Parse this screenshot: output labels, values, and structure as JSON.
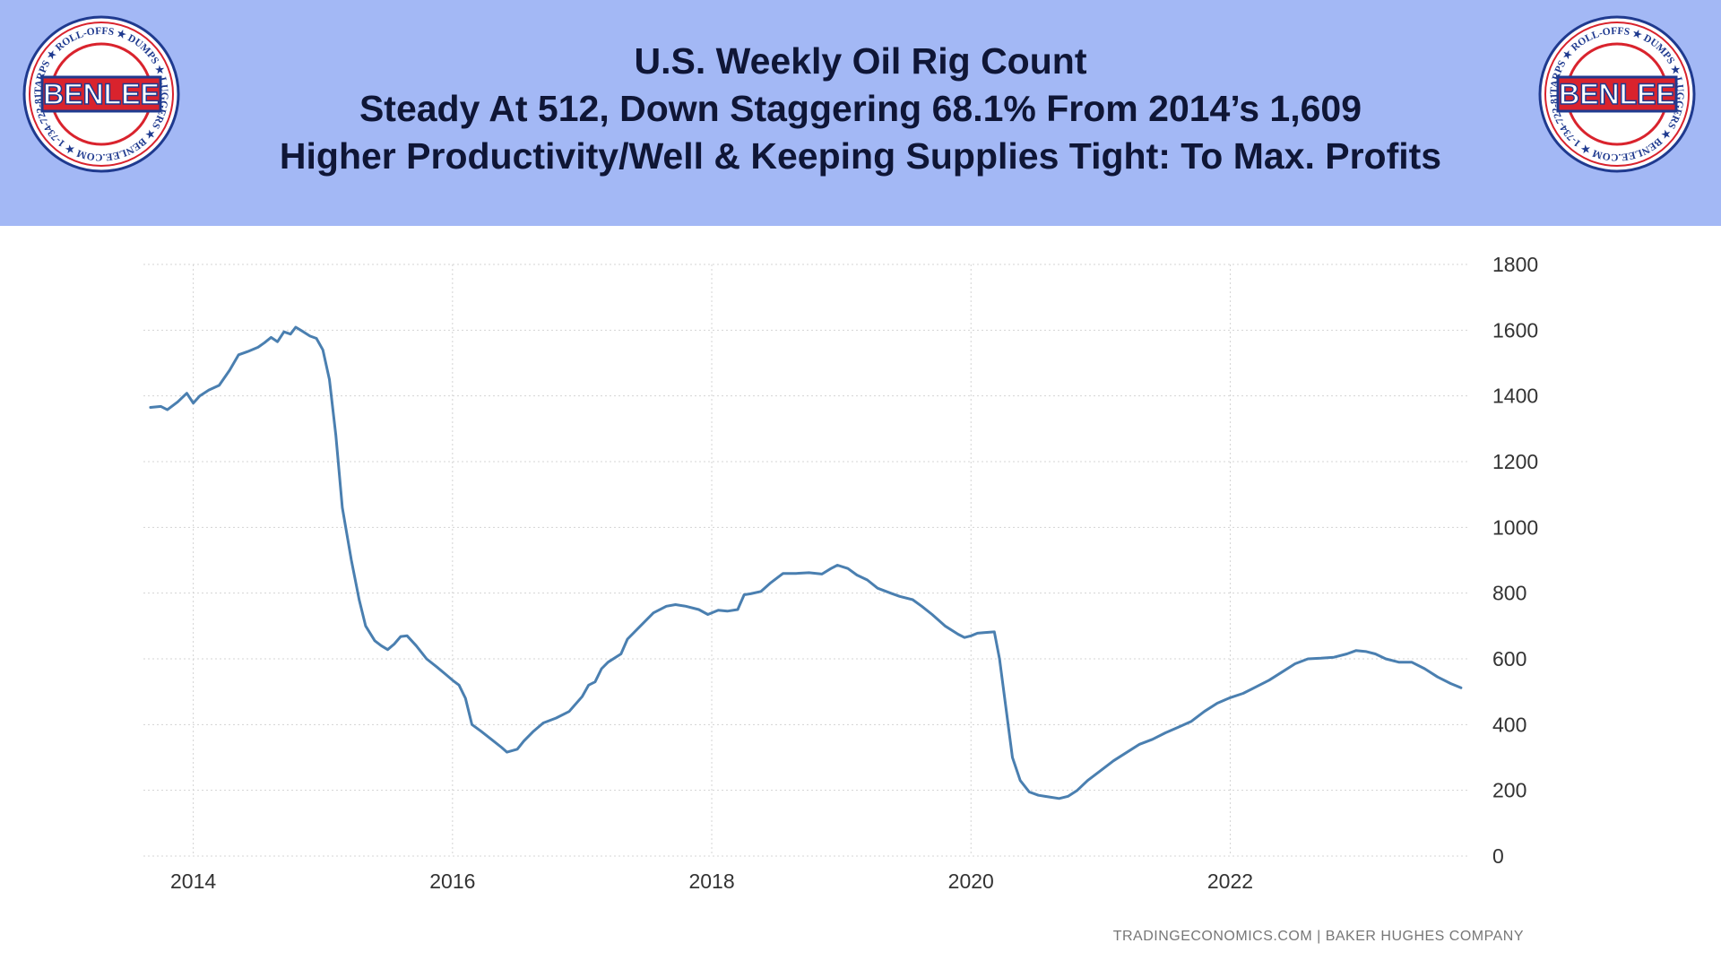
{
  "header": {
    "title_lines": [
      "U.S. Weekly Oil Rig Count",
      "Steady At 512, Down Staggering 68.1% From 2014’s 1,609",
      "Higher Productivity/Well & Keeping Supplies Tight: To Max. Profits"
    ],
    "background_color": "#a3b8f5",
    "title_color": "#0f1636"
  },
  "logo": {
    "brand": "BENLEE",
    "ring_text": "TARPS ★ ROLL-OFFS ★ DUMPS ★ LUGGERS ★ BENLEE.COM ★ 1-734-722-8100 ★ PARTS ★",
    "red": "#d9232d",
    "blue": "#1f3a8f"
  },
  "chart_data": {
    "type": "line",
    "line_color": "#4a7fb0",
    "grid": true,
    "y_axis_side": "right",
    "ylim": [
      0,
      1800
    ],
    "yticks": [
      0,
      200,
      400,
      600,
      800,
      1000,
      1200,
      1400,
      1600,
      1800
    ],
    "xlim": [
      2013.65,
      2023.85
    ],
    "xticks": [
      2014,
      2016,
      2018,
      2020,
      2022
    ],
    "series": [
      {
        "points": [
          [
            2013.67,
            1365
          ],
          [
            2013.75,
            1368
          ],
          [
            2013.8,
            1358
          ],
          [
            2013.88,
            1382
          ],
          [
            2013.95,
            1408
          ],
          [
            2014.0,
            1378
          ],
          [
            2014.05,
            1400
          ],
          [
            2014.12,
            1418
          ],
          [
            2014.2,
            1432
          ],
          [
            2014.28,
            1478
          ],
          [
            2014.35,
            1525
          ],
          [
            2014.42,
            1535
          ],
          [
            2014.5,
            1548
          ],
          [
            2014.55,
            1562
          ],
          [
            2014.6,
            1578
          ],
          [
            2014.65,
            1565
          ],
          [
            2014.7,
            1595
          ],
          [
            2014.75,
            1588
          ],
          [
            2014.79,
            1609
          ],
          [
            2014.85,
            1595
          ],
          [
            2014.9,
            1582
          ],
          [
            2014.95,
            1575
          ],
          [
            2015.0,
            1540
          ],
          [
            2015.05,
            1450
          ],
          [
            2015.1,
            1280
          ],
          [
            2015.15,
            1060
          ],
          [
            2015.22,
            900
          ],
          [
            2015.28,
            780
          ],
          [
            2015.33,
            700
          ],
          [
            2015.4,
            655
          ],
          [
            2015.45,
            640
          ],
          [
            2015.5,
            628
          ],
          [
            2015.55,
            645
          ],
          [
            2015.6,
            668
          ],
          [
            2015.65,
            670
          ],
          [
            2015.72,
            640
          ],
          [
            2015.8,
            600
          ],
          [
            2015.88,
            575
          ],
          [
            2015.95,
            552
          ],
          [
            2016.0,
            535
          ],
          [
            2016.05,
            520
          ],
          [
            2016.1,
            480
          ],
          [
            2016.15,
            400
          ],
          [
            2016.22,
            380
          ],
          [
            2016.3,
            355
          ],
          [
            2016.38,
            330
          ],
          [
            2016.42,
            316
          ],
          [
            2016.5,
            325
          ],
          [
            2016.55,
            350
          ],
          [
            2016.62,
            378
          ],
          [
            2016.7,
            405
          ],
          [
            2016.8,
            420
          ],
          [
            2016.9,
            440
          ],
          [
            2017.0,
            485
          ],
          [
            2017.05,
            520
          ],
          [
            2017.1,
            530
          ],
          [
            2017.15,
            570
          ],
          [
            2017.2,
            590
          ],
          [
            2017.3,
            615
          ],
          [
            2017.35,
            660
          ],
          [
            2017.45,
            700
          ],
          [
            2017.55,
            740
          ],
          [
            2017.65,
            760
          ],
          [
            2017.72,
            765
          ],
          [
            2017.8,
            760
          ],
          [
            2017.9,
            750
          ],
          [
            2017.97,
            735
          ],
          [
            2018.05,
            748
          ],
          [
            2018.12,
            745
          ],
          [
            2018.2,
            750
          ],
          [
            2018.25,
            795
          ],
          [
            2018.3,
            798
          ],
          [
            2018.38,
            805
          ],
          [
            2018.45,
            830
          ],
          [
            2018.55,
            860
          ],
          [
            2018.65,
            860
          ],
          [
            2018.75,
            862
          ],
          [
            2018.85,
            858
          ],
          [
            2018.92,
            875
          ],
          [
            2018.97,
            885
          ],
          [
            2019.05,
            875
          ],
          [
            2019.12,
            855
          ],
          [
            2019.2,
            840
          ],
          [
            2019.28,
            815
          ],
          [
            2019.38,
            800
          ],
          [
            2019.45,
            790
          ],
          [
            2019.55,
            780
          ],
          [
            2019.62,
            760
          ],
          [
            2019.7,
            735
          ],
          [
            2019.8,
            700
          ],
          [
            2019.9,
            675
          ],
          [
            2019.95,
            665
          ],
          [
            2020.0,
            670
          ],
          [
            2020.05,
            678
          ],
          [
            2020.1,
            680
          ],
          [
            2020.18,
            682
          ],
          [
            2020.22,
            600
          ],
          [
            2020.27,
            450
          ],
          [
            2020.32,
            300
          ],
          [
            2020.38,
            230
          ],
          [
            2020.45,
            195
          ],
          [
            2020.52,
            185
          ],
          [
            2020.6,
            180
          ],
          [
            2020.68,
            175
          ],
          [
            2020.75,
            182
          ],
          [
            2020.82,
            200
          ],
          [
            2020.9,
            230
          ],
          [
            2021.0,
            260
          ],
          [
            2021.1,
            290
          ],
          [
            2021.18,
            310
          ],
          [
            2021.3,
            340
          ],
          [
            2021.4,
            355
          ],
          [
            2021.5,
            375
          ],
          [
            2021.6,
            392
          ],
          [
            2021.7,
            410
          ],
          [
            2021.8,
            440
          ],
          [
            2021.9,
            465
          ],
          [
            2022.0,
            482
          ],
          [
            2022.1,
            495
          ],
          [
            2022.2,
            515
          ],
          [
            2022.3,
            535
          ],
          [
            2022.4,
            560
          ],
          [
            2022.5,
            585
          ],
          [
            2022.6,
            600
          ],
          [
            2022.7,
            602
          ],
          [
            2022.8,
            605
          ],
          [
            2022.9,
            615
          ],
          [
            2022.97,
            625
          ],
          [
            2023.05,
            622
          ],
          [
            2023.12,
            615
          ],
          [
            2023.2,
            600
          ],
          [
            2023.3,
            590
          ],
          [
            2023.4,
            590
          ],
          [
            2023.5,
            570
          ],
          [
            2023.6,
            545
          ],
          [
            2023.7,
            525
          ],
          [
            2023.78,
            512
          ]
        ]
      }
    ]
  },
  "source_text": "TRADINGECONOMICS.COM  |  BAKER HUGHES COMPANY"
}
